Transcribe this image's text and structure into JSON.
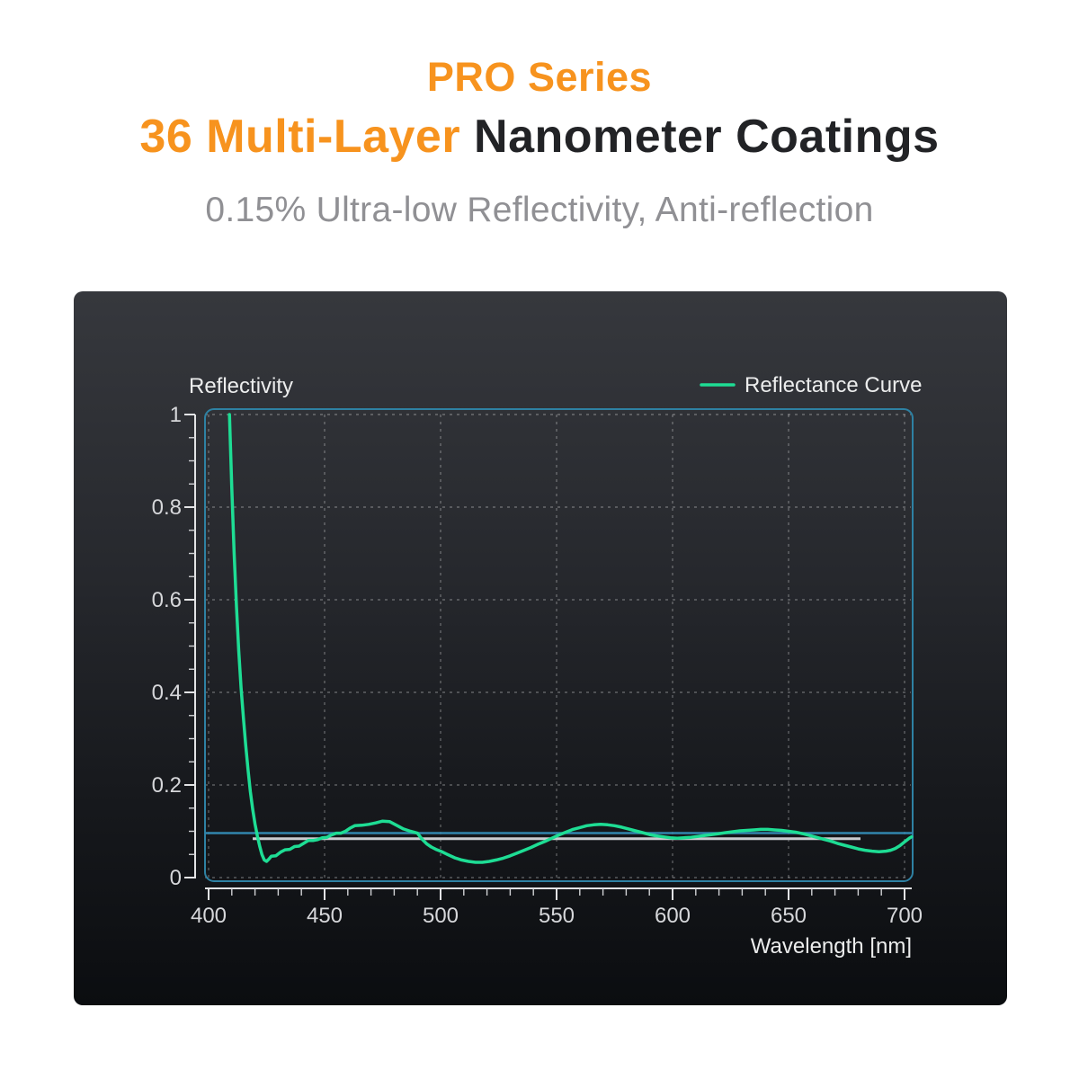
{
  "header": {
    "title_line1": "PRO Series",
    "title_line2_orange": "36 Multi-Layer",
    "title_line2_dark": "Nanometer Coatings",
    "subtitle": "0.15% Ultra-low Reflectivity, Anti-reflection",
    "accent_color": "#F7931E",
    "dark_text_color": "#222326",
    "subtitle_color": "#909094"
  },
  "chart_data": {
    "type": "line",
    "title": "",
    "ylabel": "Reflectivity",
    "xlabel": "Wavelength [nm]",
    "legend": "Reflectance Curve",
    "legend_position": "top-right",
    "grid": "dashed",
    "xlim": [
      398.5,
      703.5
    ],
    "ylim": [
      0,
      1
    ],
    "xticks": [
      400,
      450,
      500,
      550,
      600,
      650,
      700
    ],
    "xtick_minor_step": 10,
    "yticks": [
      0,
      0.2,
      0.4,
      0.6,
      0.8,
      1
    ],
    "ytick_labels": [
      "0",
      "0.2",
      "0.4",
      "0.6",
      "0.8",
      "1"
    ],
    "ytick_minor_step": 0.05,
    "colors": {
      "curve": "#1EDD94",
      "plot_border": "#2E81A3",
      "axis": "#E2E3E5",
      "grid": "rgba(255,255,255,0.30)",
      "reference_blue": "#3285AD",
      "reference_gray": "#C9CCD0",
      "panel_top": "#36383D",
      "panel_bottom": "#0B0D10"
    },
    "reference_lines": [
      {
        "name": "reference-line-blue",
        "value": 0.096,
        "x_start": 398.5,
        "x_end": 703.5,
        "color": "#3285AD",
        "width": 2.5
      },
      {
        "name": "reference-line-gray",
        "value": 0.084,
        "x_start": 419,
        "x_end": 681,
        "color": "#C9CCD0",
        "width": 3
      }
    ],
    "series": [
      {
        "name": "Reflectance Curve",
        "color": "#1EDD94",
        "points": [
          [
            409,
            1.0
          ],
          [
            410,
            0.84
          ],
          [
            411,
            0.7
          ],
          [
            412,
            0.585
          ],
          [
            413,
            0.49
          ],
          [
            414,
            0.41
          ],
          [
            415,
            0.345
          ],
          [
            416,
            0.285
          ],
          [
            417,
            0.232
          ],
          [
            418,
            0.186
          ],
          [
            419,
            0.148
          ],
          [
            420,
            0.116
          ],
          [
            421,
            0.09
          ],
          [
            422,
            0.068
          ],
          [
            423,
            0.05
          ],
          [
            424,
            0.038
          ],
          [
            425,
            0.035
          ],
          [
            426,
            0.04
          ],
          [
            427,
            0.046
          ],
          [
            429,
            0.047
          ],
          [
            431,
            0.055
          ],
          [
            433,
            0.06
          ],
          [
            435,
            0.061
          ],
          [
            437,
            0.067
          ],
          [
            439,
            0.068
          ],
          [
            441,
            0.074
          ],
          [
            443,
            0.08
          ],
          [
            445,
            0.08
          ],
          [
            447,
            0.082
          ],
          [
            449,
            0.086
          ],
          [
            451,
            0.087
          ],
          [
            453,
            0.092
          ],
          [
            455,
            0.096
          ],
          [
            457,
            0.096
          ],
          [
            459,
            0.1
          ],
          [
            461,
            0.107
          ],
          [
            463,
            0.112
          ],
          [
            466,
            0.113
          ],
          [
            469,
            0.115
          ],
          [
            472,
            0.118
          ],
          [
            475,
            0.122
          ],
          [
            478,
            0.121
          ],
          [
            481,
            0.113
          ],
          [
            484,
            0.105
          ],
          [
            487,
            0.1
          ],
          [
            490,
            0.096
          ],
          [
            492,
            0.083
          ],
          [
            494,
            0.073
          ],
          [
            496,
            0.066
          ],
          [
            498,
            0.061
          ],
          [
            500,
            0.057
          ],
          [
            503,
            0.05
          ],
          [
            506,
            0.043
          ],
          [
            509,
            0.038
          ],
          [
            512,
            0.035
          ],
          [
            515,
            0.033
          ],
          [
            518,
            0.033
          ],
          [
            521,
            0.035
          ],
          [
            524,
            0.038
          ],
          [
            527,
            0.042
          ],
          [
            530,
            0.047
          ],
          [
            533,
            0.053
          ],
          [
            536,
            0.059
          ],
          [
            539,
            0.065
          ],
          [
            542,
            0.072
          ],
          [
            545,
            0.078
          ],
          [
            548,
            0.085
          ],
          [
            551,
            0.092
          ],
          [
            554,
            0.098
          ],
          [
            557,
            0.104
          ],
          [
            560,
            0.108
          ],
          [
            563,
            0.112
          ],
          [
            566,
            0.114
          ],
          [
            569,
            0.115
          ],
          [
            572,
            0.114
          ],
          [
            575,
            0.112
          ],
          [
            578,
            0.109
          ],
          [
            581,
            0.105
          ],
          [
            584,
            0.101
          ],
          [
            587,
            0.097
          ],
          [
            590,
            0.093
          ],
          [
            593,
            0.09
          ],
          [
            596,
            0.088
          ],
          [
            599,
            0.086
          ],
          [
            602,
            0.085
          ],
          [
            605,
            0.086
          ],
          [
            608,
            0.087
          ],
          [
            611,
            0.089
          ],
          [
            614,
            0.091
          ],
          [
            617,
            0.093
          ],
          [
            620,
            0.095
          ],
          [
            623,
            0.097
          ],
          [
            626,
            0.099
          ],
          [
            629,
            0.101
          ],
          [
            632,
            0.102
          ],
          [
            635,
            0.103
          ],
          [
            638,
            0.104
          ],
          [
            641,
            0.104
          ],
          [
            644,
            0.103
          ],
          [
            647,
            0.102
          ],
          [
            650,
            0.1
          ],
          [
            653,
            0.098
          ],
          [
            656,
            0.095
          ],
          [
            659,
            0.091
          ],
          [
            662,
            0.087
          ],
          [
            665,
            0.083
          ],
          [
            668,
            0.079
          ],
          [
            671,
            0.074
          ],
          [
            674,
            0.07
          ],
          [
            677,
            0.066
          ],
          [
            680,
            0.062
          ],
          [
            683,
            0.059
          ],
          [
            686,
            0.057
          ],
          [
            689,
            0.056
          ],
          [
            692,
            0.057
          ],
          [
            694,
            0.059
          ],
          [
            696,
            0.063
          ],
          [
            698,
            0.069
          ],
          [
            700,
            0.077
          ],
          [
            702,
            0.085
          ],
          [
            703,
            0.088
          ]
        ]
      }
    ]
  }
}
